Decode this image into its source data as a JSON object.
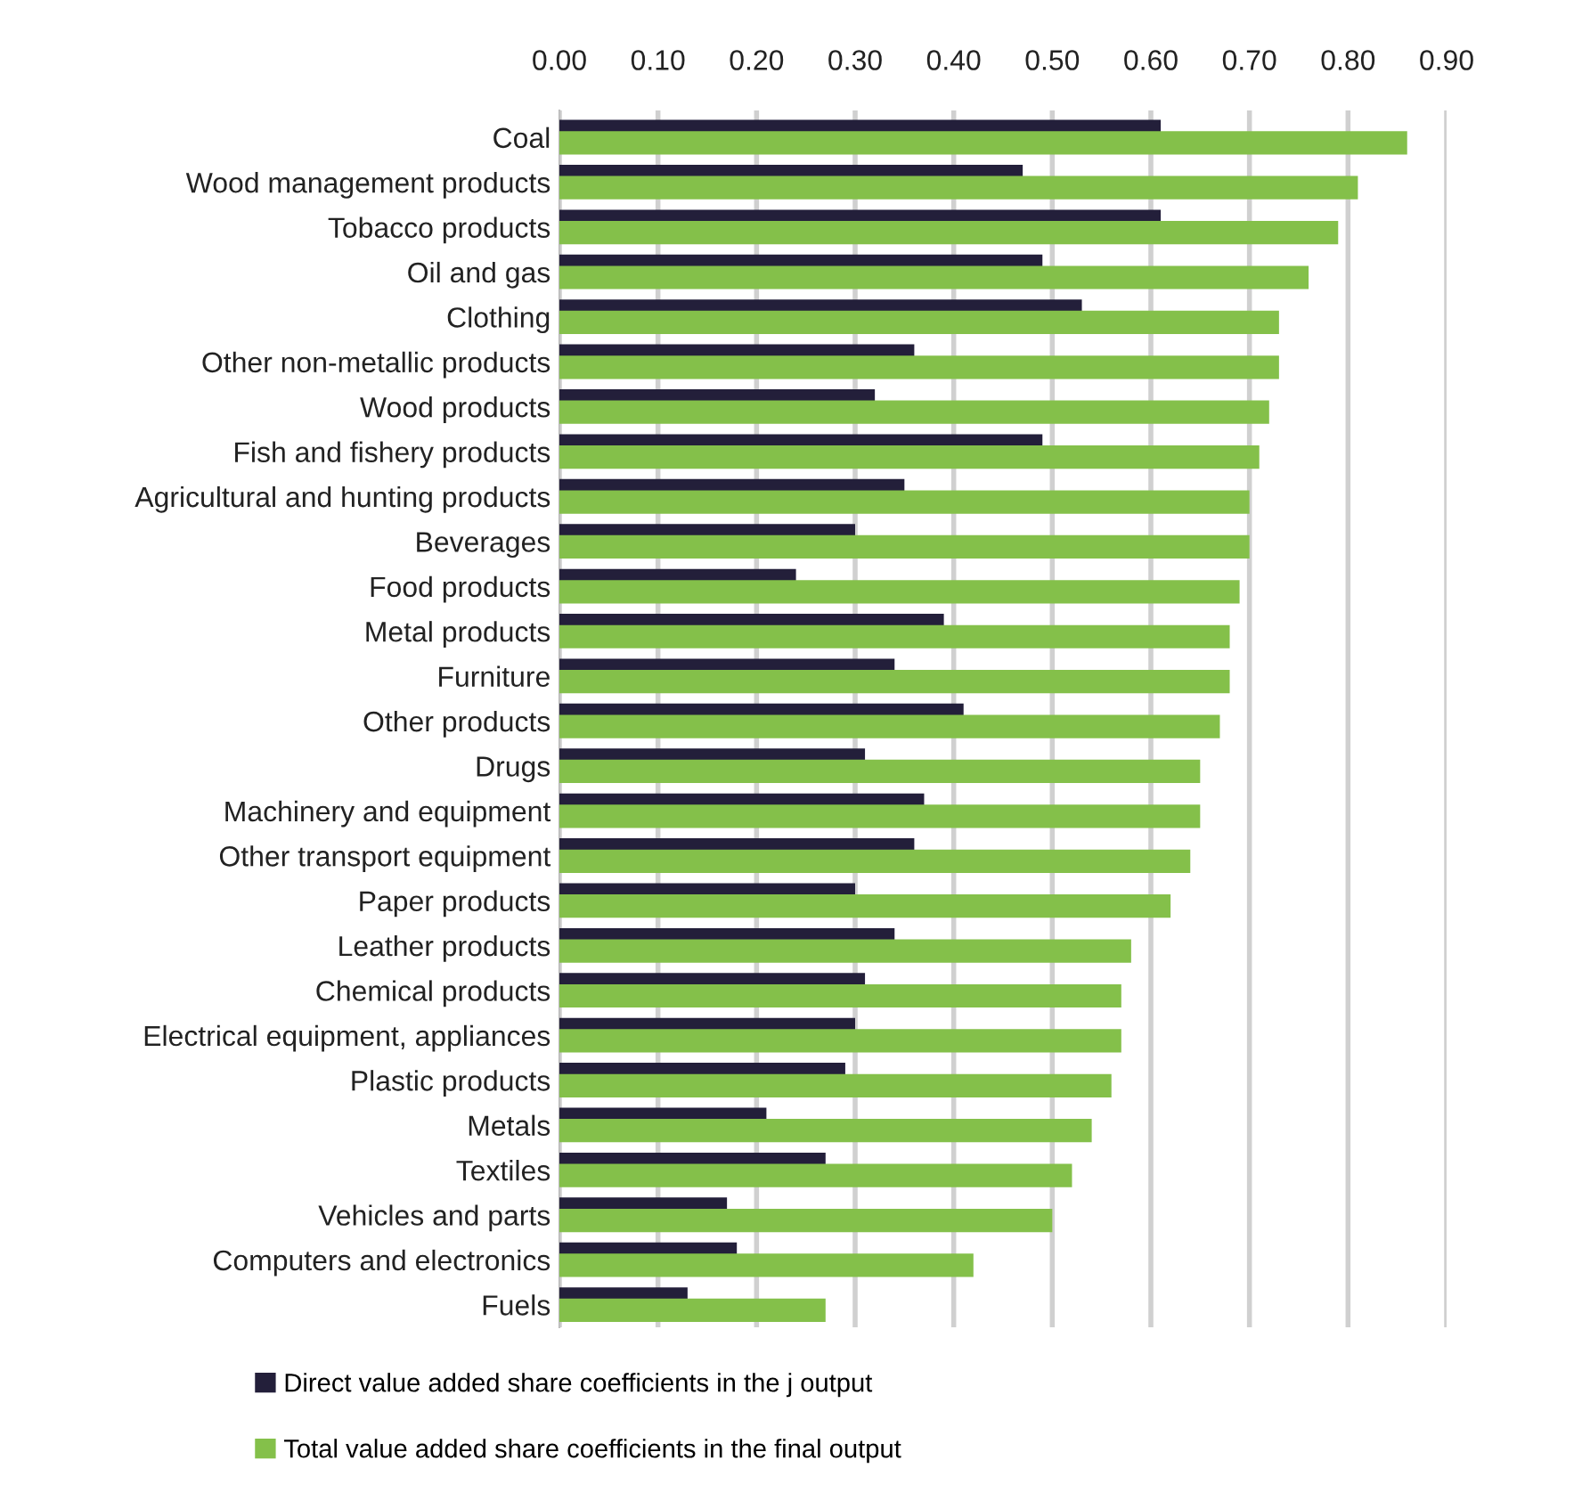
{
  "chart_data": {
    "type": "bar",
    "orientation": "horizontal",
    "categories": [
      "Coal",
      "Wood management products",
      "Tobacco products",
      "Oil and gas",
      "Clothing",
      "Other non-metallic products",
      "Wood products",
      "Fish and fishery products",
      "Agricultural and hunting products",
      "Beverages",
      "Food products",
      "Metal products",
      "Furniture",
      "Other products",
      "Drugs",
      "Machinery and equipment",
      "Other transport equipment",
      "Paper products",
      "Leather products",
      "Chemical products",
      "Electrical equipment, appliances",
      "Plastic products",
      "Metals",
      "Textiles",
      "Vehicles and parts",
      "Computers and electronics",
      "Fuels"
    ],
    "series": [
      {
        "name": "Direct value added share coefficients in the j output",
        "color": "#231f3a",
        "values": [
          0.61,
          0.47,
          0.61,
          0.49,
          0.53,
          0.36,
          0.32,
          0.49,
          0.35,
          0.3,
          0.24,
          0.39,
          0.34,
          0.41,
          0.31,
          0.37,
          0.36,
          0.3,
          0.34,
          0.31,
          0.3,
          0.29,
          0.21,
          0.27,
          0.17,
          0.18,
          0.13
        ]
      },
      {
        "name": "Total value added share coefficients in the final output",
        "color": "#84c04a",
        "values": [
          0.86,
          0.81,
          0.79,
          0.76,
          0.73,
          0.73,
          0.72,
          0.71,
          0.7,
          0.7,
          0.69,
          0.68,
          0.68,
          0.67,
          0.65,
          0.65,
          0.64,
          0.62,
          0.58,
          0.57,
          0.57,
          0.56,
          0.54,
          0.52,
          0.5,
          0.42,
          0.27
        ]
      }
    ],
    "xlim": [
      0,
      0.9
    ],
    "xticks": [
      {
        "value": 0,
        "label": "0.00"
      },
      {
        "value": 0.1,
        "label": "0.10"
      },
      {
        "value": 0.2,
        "label": "0.20"
      },
      {
        "value": 0.3,
        "label": "0.30"
      },
      {
        "value": 0.4,
        "label": "0.40"
      },
      {
        "value": 0.5,
        "label": "0.50"
      },
      {
        "value": 0.6,
        "label": "0.60"
      },
      {
        "value": 0.7,
        "label": "0.70"
      },
      {
        "value": 0.8,
        "label": "0.80"
      },
      {
        "value": 0.9,
        "label": "0.90"
      }
    ],
    "grid": "x",
    "legend": "bottom"
  }
}
